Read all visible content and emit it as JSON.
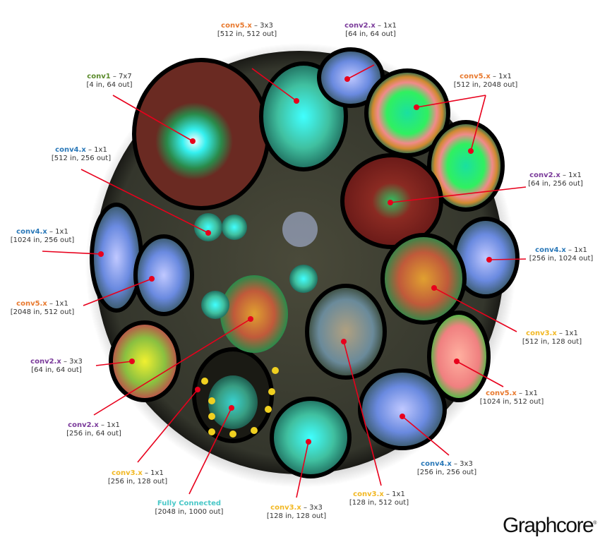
{
  "labels": [
    {
      "name": "conv5.x",
      "kernel": "3x3",
      "spec": "[512 in, 512 out]",
      "color": "#e8792e"
    },
    {
      "name": "conv2.x",
      "kernel": "1x1",
      "spec": "[64 in, 64 out]",
      "color": "#7a3a9a"
    },
    {
      "name": "conv1",
      "kernel": "7x7",
      "spec": "[4 in, 64 out]",
      "color": "#5a8a2a"
    },
    {
      "name": "conv5.x",
      "kernel": "1x1",
      "spec": "[512 in, 2048 out]",
      "color": "#e8792e"
    },
    {
      "name": "conv4.x",
      "kernel": "1x1",
      "spec": "[512 in, 256 out]",
      "color": "#2a78b8"
    },
    {
      "name": "conv2.x",
      "kernel": "1x1",
      "spec": "[64 in, 256 out]",
      "color": "#7a3a9a"
    },
    {
      "name": "conv4.x",
      "kernel": "1x1",
      "spec": "[1024 in, 256 out]",
      "color": "#2a78b8"
    },
    {
      "name": "conv4.x",
      "kernel": "1x1",
      "spec": "[256 in, 1024 out]",
      "color": "#2a78b8"
    },
    {
      "name": "conv5.x",
      "kernel": "1x1",
      "spec": "[2048 in, 512 out]",
      "color": "#e8792e"
    },
    {
      "name": "conv3.x",
      "kernel": "1x1",
      "spec": "[512 in, 128 out]",
      "color": "#f2b824"
    },
    {
      "name": "conv2.x",
      "kernel": "3x3",
      "spec": "[64 in, 64 out]",
      "color": "#7a3a9a"
    },
    {
      "name": "conv5.x",
      "kernel": "1x1",
      "spec": "[1024 in, 512 out]",
      "color": "#e8792e"
    },
    {
      "name": "conv2.x",
      "kernel": "1x1",
      "spec": "[256 in, 64 out]",
      "color": "#7a3a9a"
    },
    {
      "name": "conv4.x",
      "kernel": "3x3",
      "spec": "[256 in, 256 out]",
      "color": "#2a78b8"
    },
    {
      "name": "conv3.x",
      "kernel": "1x1",
      "spec": "[256 in, 128 out]",
      "color": "#f2b824"
    },
    {
      "name": "Fully Connected",
      "kernel": "",
      "spec": "[2048 in, 1000 out]",
      "color": "#4ac8c8"
    },
    {
      "name": "conv3.x",
      "kernel": "3x3",
      "spec": "[128 in, 128 out]",
      "color": "#f2b824"
    },
    {
      "name": "conv3.x",
      "kernel": "1x1",
      "spec": "[128 in, 512 out]",
      "color": "#f2b824"
    }
  ],
  "separator": " – ",
  "logo": {
    "text": "Graphcore",
    "mark": "®"
  },
  "colors": {
    "pointer": "#e8001c",
    "background_disc": "#3a3d30"
  }
}
